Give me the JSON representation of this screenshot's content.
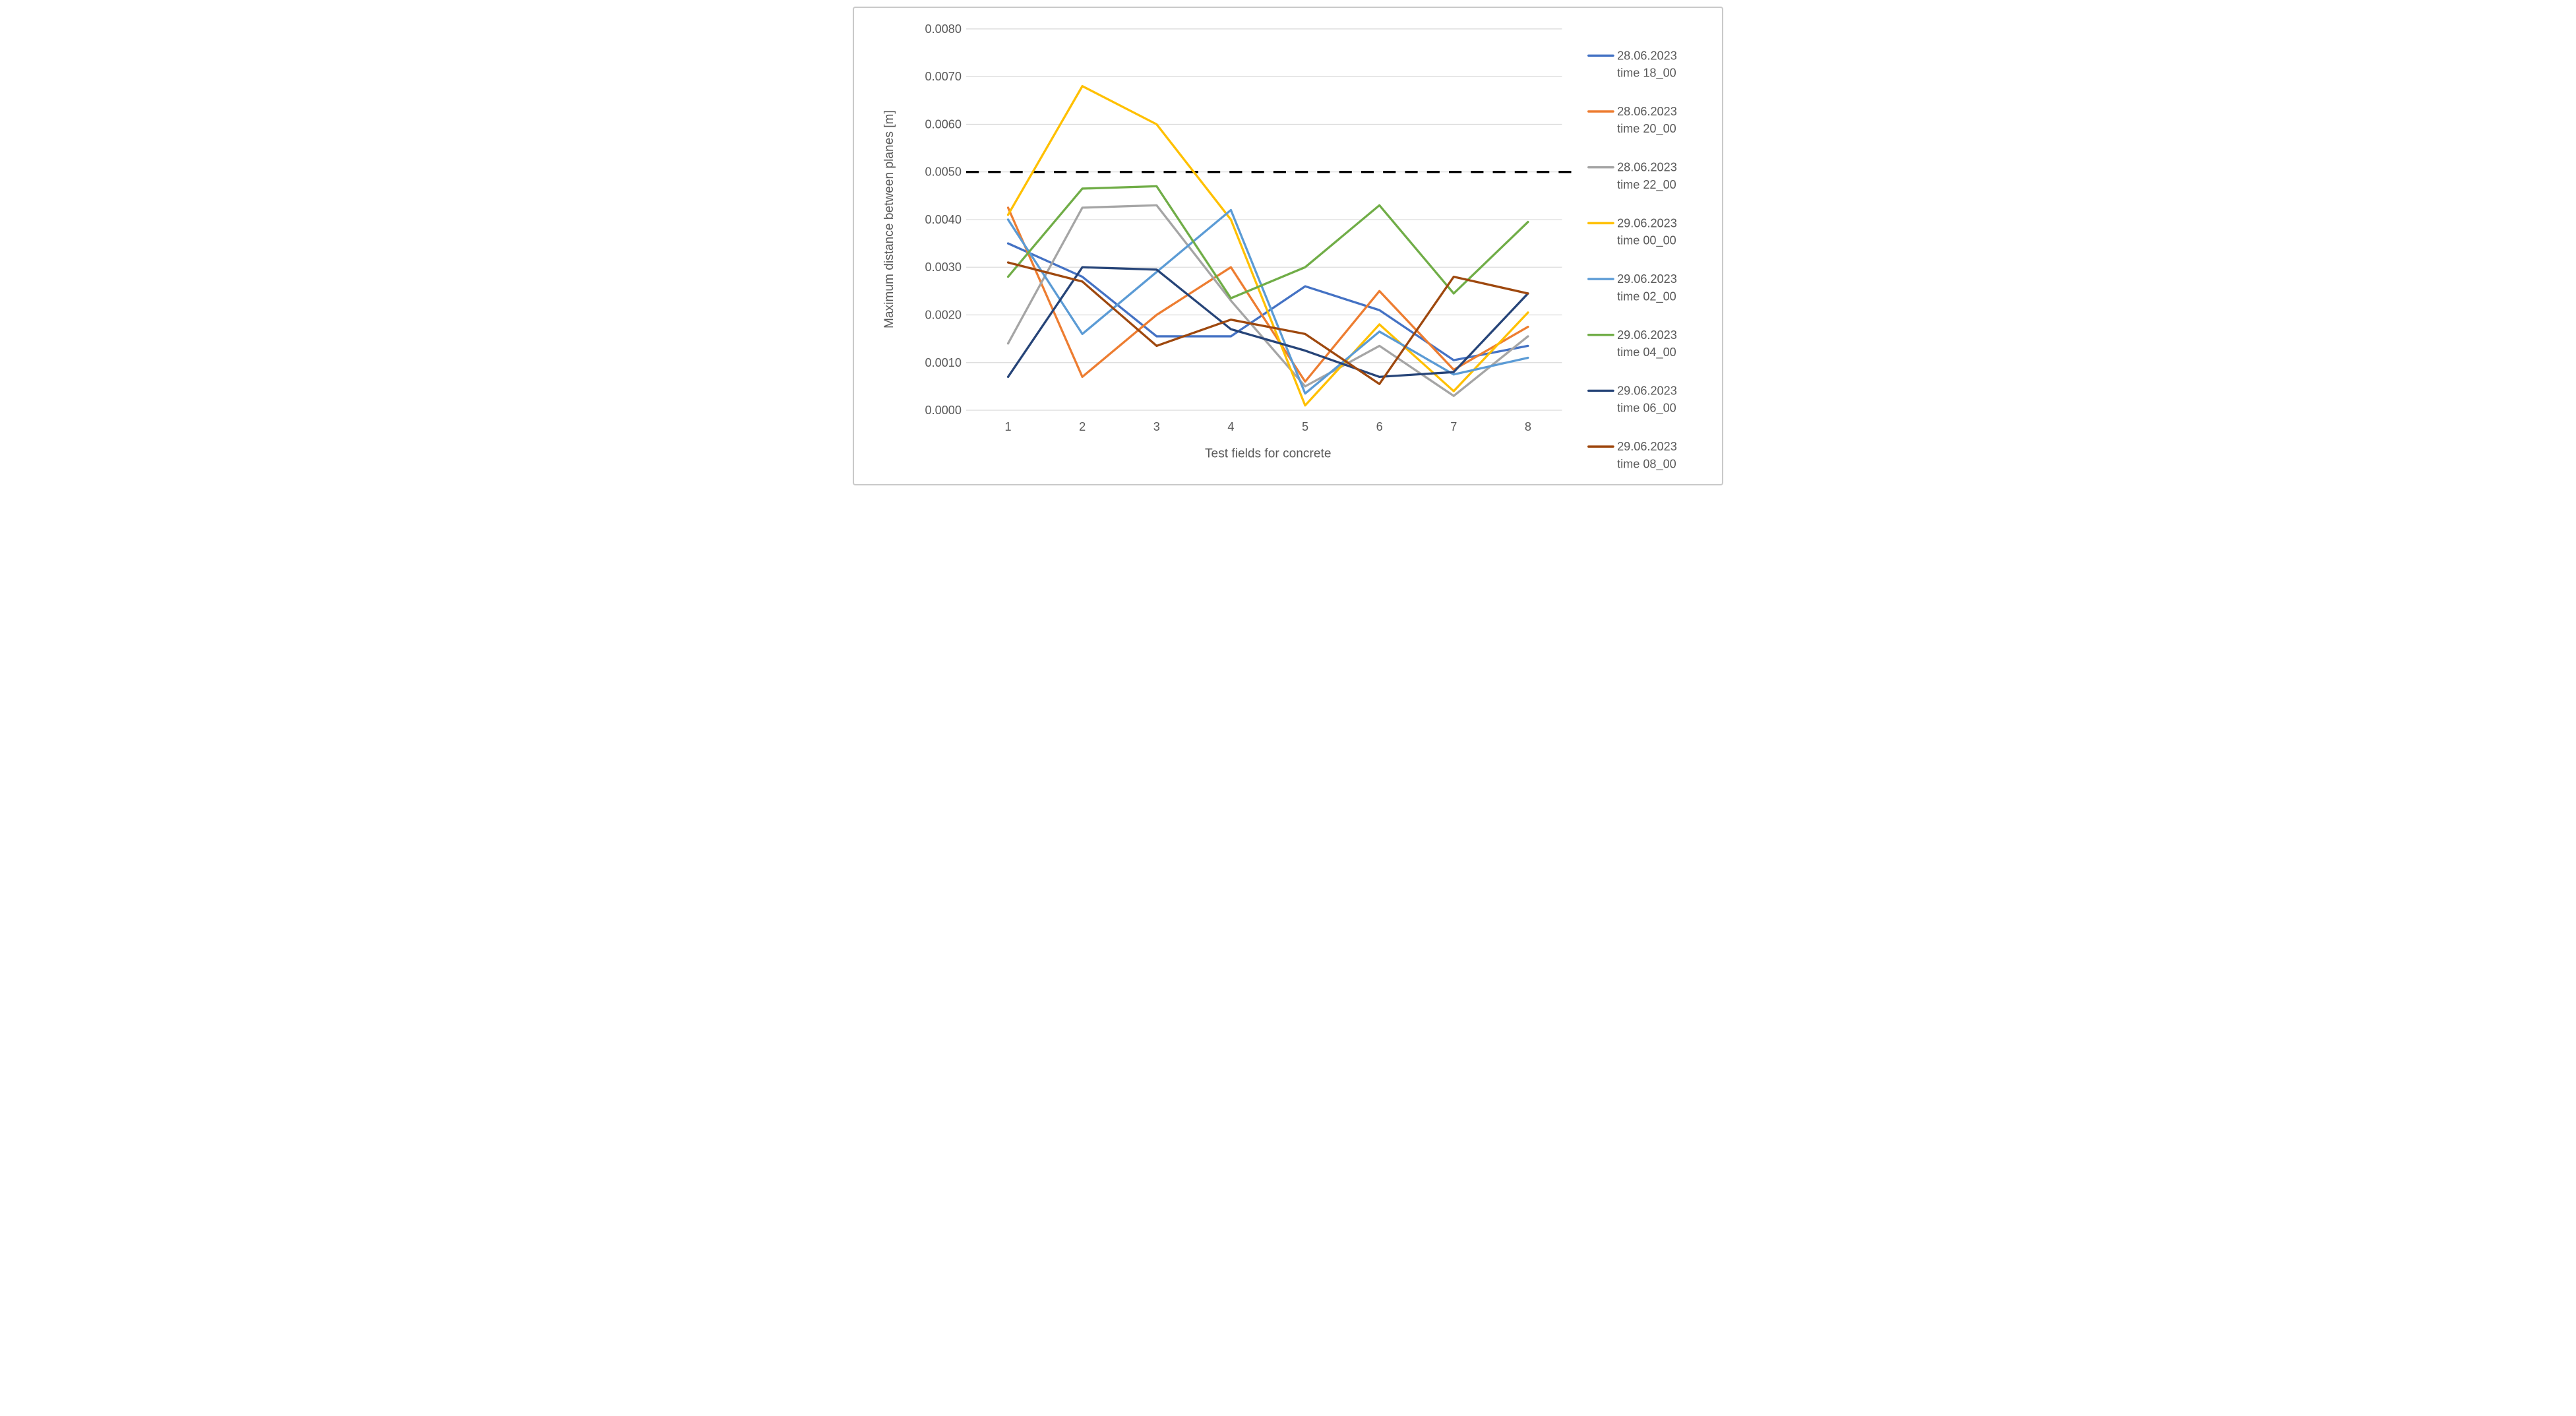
{
  "chart_data": {
    "type": "line",
    "title": "",
    "xlabel": "Test fields for concrete",
    "ylabel": "Maximum distance between planes [m]",
    "x_categories": [
      "1",
      "2",
      "3",
      "4",
      "5",
      "6",
      "7",
      "8"
    ],
    "y_ticks": [
      "0.0000",
      "0.0010",
      "0.0020",
      "0.0030",
      "0.0040",
      "0.0050",
      "0.0060",
      "0.0070",
      "0.0080"
    ],
    "ylim": [
      0.0,
      0.008
    ],
    "grid": true,
    "gridline_color": "#D9D9D9",
    "legend_position": "right",
    "reference_line": {
      "value": 0.005,
      "style": "dashed",
      "color": "#000000"
    },
    "series": [
      {
        "name": "28.06.2023 time 18_00",
        "legend_lines": [
          "28.06.2023",
          "time 18_00"
        ],
        "color": "#4472C4",
        "values": [
          0.0035,
          0.0028,
          0.00155,
          0.00155,
          0.0026,
          0.0021,
          0.00105,
          0.00135
        ]
      },
      {
        "name": "28.06.2023 time 20_00",
        "legend_lines": [
          "28.06.2023",
          "time 20_00"
        ],
        "color": "#ED7D31",
        "values": [
          0.00425,
          0.0007,
          0.002,
          0.003,
          0.0006,
          0.0025,
          0.00085,
          0.00175
        ]
      },
      {
        "name": "28.06.2023 time 22_00",
        "legend_lines": [
          "28.06.2023",
          "time 22_00"
        ],
        "color": "#A5A5A5",
        "values": [
          0.0014,
          0.00425,
          0.0043,
          0.0023,
          0.0005,
          0.00135,
          0.0003,
          0.00155
        ]
      },
      {
        "name": "29.06.2023 time 00_00",
        "legend_lines": [
          "29.06.2023",
          "time 00_00"
        ],
        "color": "#FFC000",
        "values": [
          0.0041,
          0.0068,
          0.006,
          0.004,
          0.0001,
          0.0018,
          0.0004,
          0.00205
        ]
      },
      {
        "name": "29.06.2023 time 02_00",
        "legend_lines": [
          "29.06.2023",
          "time 02_00"
        ],
        "color": "#5B9BD5",
        "values": [
          0.004,
          0.0016,
          0.0029,
          0.0042,
          0.00035,
          0.00165,
          0.00075,
          0.0011
        ]
      },
      {
        "name": "29.06.2023 time 04_00",
        "legend_lines": [
          "29.06.2023",
          "time 04_00"
        ],
        "color": "#70AD47",
        "values": [
          0.0028,
          0.00465,
          0.0047,
          0.00235,
          0.003,
          0.0043,
          0.00245,
          0.00395
        ]
      },
      {
        "name": "29.06.2023 time 06_00",
        "legend_lines": [
          "29.06.2023",
          "time 06_00"
        ],
        "color": "#264478",
        "values": [
          0.0007,
          0.003,
          0.00295,
          0.0017,
          0.00125,
          0.0007,
          0.0008,
          0.00245
        ]
      },
      {
        "name": "29.06.2023 time 08_00",
        "legend_lines": [
          "29.06.2023",
          "time 08_00"
        ],
        "color": "#9E480E",
        "values": [
          0.0031,
          0.0027,
          0.00135,
          0.0019,
          0.0016,
          0.00055,
          0.0028,
          0.00245
        ]
      }
    ]
  },
  "style": {
    "text_color": "#595959",
    "background": "#FFFFFF",
    "frame_border": "#C9C9C9"
  }
}
